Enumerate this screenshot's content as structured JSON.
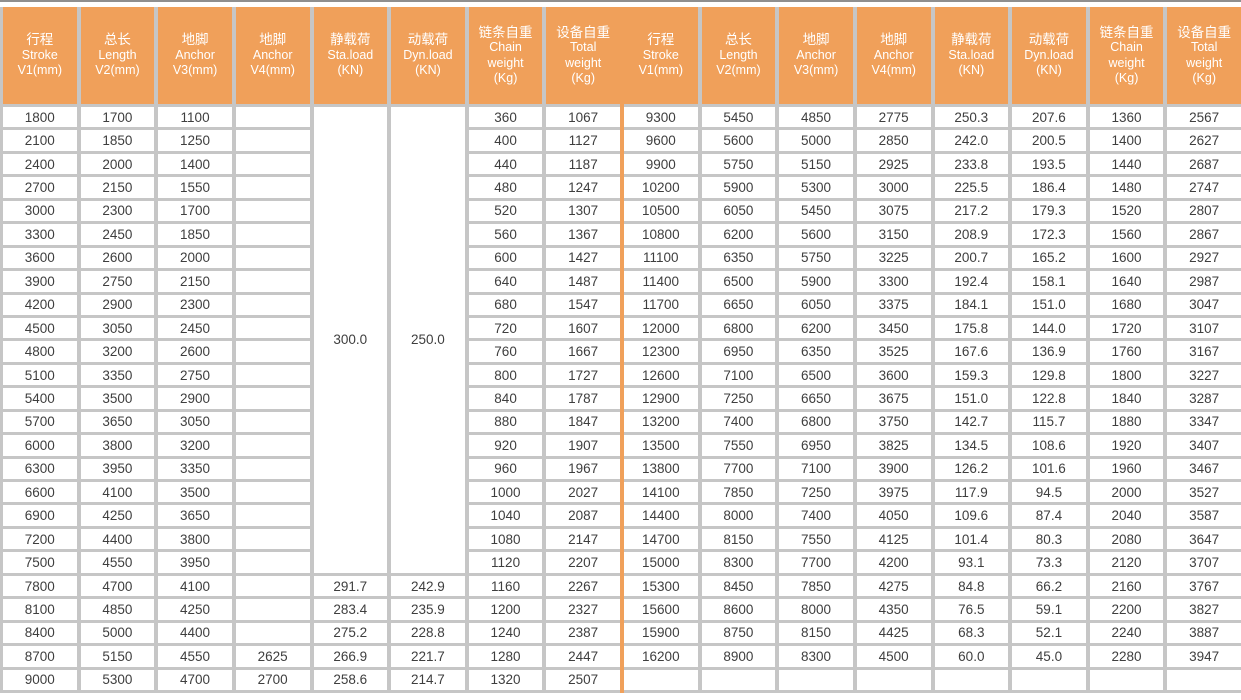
{
  "colors": {
    "header_orange": "#F0A05A",
    "divider_orange": "#F0A05A",
    "grid_gray": "#C6C6C6",
    "top_line_gray": "#8F8F8F",
    "data_text": "#3E3E3E",
    "header_text": "#FFFFFF"
  },
  "columns": [
    {
      "key": "stroke",
      "lines": [
        "行程",
        "Stroke",
        "V1(mm)"
      ]
    },
    {
      "key": "length",
      "lines": [
        "总长",
        "Length",
        "V2(mm)"
      ]
    },
    {
      "key": "anchor-v3",
      "lines": [
        "地脚",
        "Anchor",
        "V3(mm)"
      ]
    },
    {
      "key": "anchor-v4",
      "lines": [
        "地脚",
        "Anchor",
        "V4(mm)"
      ]
    },
    {
      "key": "sta-load",
      "lines": [
        "静载荷",
        "Sta.load",
        "(KN)"
      ]
    },
    {
      "key": "dyn-load",
      "lines": [
        "动载荷",
        "Dyn.load",
        "(KN)"
      ]
    },
    {
      "key": "chain-weight",
      "lines": [
        "链条自重",
        "Chain",
        "weight",
        "(Kg)"
      ]
    },
    {
      "key": "total-weight",
      "lines": [
        "设备自重",
        "Total",
        "weight",
        "(Kg)"
      ]
    }
  ],
  "halves": [
    {
      "name": "left",
      "merges": [
        {
          "row": 0,
          "col": 4,
          "rowSpan": 20,
          "value": "300.0"
        },
        {
          "row": 0,
          "col": 5,
          "rowSpan": 20,
          "value": "250.0"
        }
      ],
      "rows": [
        [
          "1800",
          "1700",
          "1100",
          "",
          null,
          null,
          "360",
          "1067"
        ],
        [
          "2100",
          "1850",
          "1250",
          "",
          null,
          null,
          "400",
          "1127"
        ],
        [
          "2400",
          "2000",
          "1400",
          "",
          null,
          null,
          "440",
          "1187"
        ],
        [
          "2700",
          "2150",
          "1550",
          "",
          null,
          null,
          "480",
          "1247"
        ],
        [
          "3000",
          "2300",
          "1700",
          "",
          null,
          null,
          "520",
          "1307"
        ],
        [
          "3300",
          "2450",
          "1850",
          "",
          null,
          null,
          "560",
          "1367"
        ],
        [
          "3600",
          "2600",
          "2000",
          "",
          null,
          null,
          "600",
          "1427"
        ],
        [
          "3900",
          "2750",
          "2150",
          "",
          null,
          null,
          "640",
          "1487"
        ],
        [
          "4200",
          "2900",
          "2300",
          "",
          null,
          null,
          "680",
          "1547"
        ],
        [
          "4500",
          "3050",
          "2450",
          "",
          null,
          null,
          "720",
          "1607"
        ],
        [
          "4800",
          "3200",
          "2600",
          "",
          null,
          null,
          "760",
          "1667"
        ],
        [
          "5100",
          "3350",
          "2750",
          "",
          null,
          null,
          "800",
          "1727"
        ],
        [
          "5400",
          "3500",
          "2900",
          "",
          null,
          null,
          "840",
          "1787"
        ],
        [
          "5700",
          "3650",
          "3050",
          "",
          null,
          null,
          "880",
          "1847"
        ],
        [
          "6000",
          "3800",
          "3200",
          "",
          null,
          null,
          "920",
          "1907"
        ],
        [
          "6300",
          "3950",
          "3350",
          "",
          null,
          null,
          "960",
          "1967"
        ],
        [
          "6600",
          "4100",
          "3500",
          "",
          null,
          null,
          "1000",
          "2027"
        ],
        [
          "6900",
          "4250",
          "3650",
          "",
          null,
          null,
          "1040",
          "2087"
        ],
        [
          "7200",
          "4400",
          "3800",
          "",
          null,
          null,
          "1080",
          "2147"
        ],
        [
          "7500",
          "4550",
          "3950",
          "",
          null,
          null,
          "1120",
          "2207"
        ],
        [
          "7800",
          "4700",
          "4100",
          "",
          "291.7",
          "242.9",
          "1160",
          "2267"
        ],
        [
          "8100",
          "4850",
          "4250",
          "",
          "283.4",
          "235.9",
          "1200",
          "2327"
        ],
        [
          "8400",
          "5000",
          "4400",
          "",
          "275.2",
          "228.8",
          "1240",
          "2387"
        ],
        [
          "8700",
          "5150",
          "4550",
          "2625",
          "266.9",
          "221.7",
          "1280",
          "2447"
        ],
        [
          "9000",
          "5300",
          "4700",
          "2700",
          "258.6",
          "214.7",
          "1320",
          "2507"
        ]
      ]
    },
    {
      "name": "right",
      "merges": [],
      "rows": [
        [
          "9300",
          "5450",
          "4850",
          "2775",
          "250.3",
          "207.6",
          "1360",
          "2567"
        ],
        [
          "9600",
          "5600",
          "5000",
          "2850",
          "242.0",
          "200.5",
          "1400",
          "2627"
        ],
        [
          "9900",
          "5750",
          "5150",
          "2925",
          "233.8",
          "193.5",
          "1440",
          "2687"
        ],
        [
          "10200",
          "5900",
          "5300",
          "3000",
          "225.5",
          "186.4",
          "1480",
          "2747"
        ],
        [
          "10500",
          "6050",
          "5450",
          "3075",
          "217.2",
          "179.3",
          "1520",
          "2807"
        ],
        [
          "10800",
          "6200",
          "5600",
          "3150",
          "208.9",
          "172.3",
          "1560",
          "2867"
        ],
        [
          "11100",
          "6350",
          "5750",
          "3225",
          "200.7",
          "165.2",
          "1600",
          "2927"
        ],
        [
          "11400",
          "6500",
          "5900",
          "3300",
          "192.4",
          "158.1",
          "1640",
          "2987"
        ],
        [
          "11700",
          "6650",
          "6050",
          "3375",
          "184.1",
          "151.0",
          "1680",
          "3047"
        ],
        [
          "12000",
          "6800",
          "6200",
          "3450",
          "175.8",
          "144.0",
          "1720",
          "3107"
        ],
        [
          "12300",
          "6950",
          "6350",
          "3525",
          "167.6",
          "136.9",
          "1760",
          "3167"
        ],
        [
          "12600",
          "7100",
          "6500",
          "3600",
          "159.3",
          "129.8",
          "1800",
          "3227"
        ],
        [
          "12900",
          "7250",
          "6650",
          "3675",
          "151.0",
          "122.8",
          "1840",
          "3287"
        ],
        [
          "13200",
          "7400",
          "6800",
          "3750",
          "142.7",
          "115.7",
          "1880",
          "3347"
        ],
        [
          "13500",
          "7550",
          "6950",
          "3825",
          "134.5",
          "108.6",
          "1920",
          "3407"
        ],
        [
          "13800",
          "7700",
          "7100",
          "3900",
          "126.2",
          "101.6",
          "1960",
          "3467"
        ],
        [
          "14100",
          "7850",
          "7250",
          "3975",
          "117.9",
          "94.5",
          "2000",
          "3527"
        ],
        [
          "14400",
          "8000",
          "7400",
          "4050",
          "109.6",
          "87.4",
          "2040",
          "3587"
        ],
        [
          "14700",
          "8150",
          "7550",
          "4125",
          "101.4",
          "80.3",
          "2080",
          "3647"
        ],
        [
          "15000",
          "8300",
          "7700",
          "4200",
          "93.1",
          "73.3",
          "2120",
          "3707"
        ],
        [
          "15300",
          "8450",
          "7850",
          "4275",
          "84.8",
          "66.2",
          "2160",
          "3767"
        ],
        [
          "15600",
          "8600",
          "8000",
          "4350",
          "76.5",
          "59.1",
          "2200",
          "3827"
        ],
        [
          "15900",
          "8750",
          "8150",
          "4425",
          "68.3",
          "52.1",
          "2240",
          "3887"
        ],
        [
          "16200",
          "8900",
          "8300",
          "4500",
          "60.0",
          "45.0",
          "2280",
          "3947"
        ],
        [
          "",
          "",
          "",
          "",
          "",
          "",
          "",
          ""
        ]
      ]
    }
  ]
}
